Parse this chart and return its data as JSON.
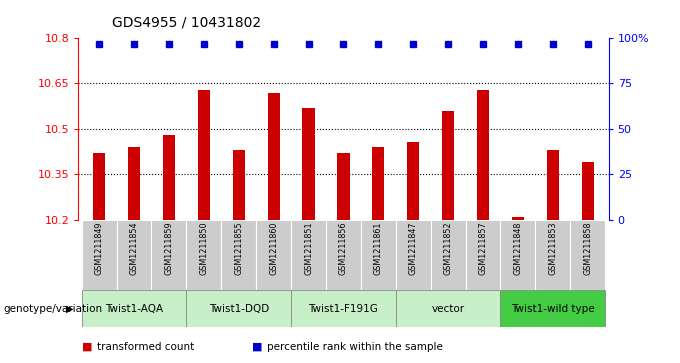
{
  "title": "GDS4955 / 10431802",
  "samples": [
    "GSM1211849",
    "GSM1211854",
    "GSM1211859",
    "GSM1211850",
    "GSM1211855",
    "GSM1211860",
    "GSM1211851",
    "GSM1211856",
    "GSM1211861",
    "GSM1211847",
    "GSM1211852",
    "GSM1211857",
    "GSM1211848",
    "GSM1211853",
    "GSM1211858"
  ],
  "bar_values": [
    10.42,
    10.44,
    10.48,
    10.63,
    10.43,
    10.62,
    10.57,
    10.42,
    10.44,
    10.455,
    10.56,
    10.63,
    10.21,
    10.43,
    10.39
  ],
  "percentile_values": [
    97,
    97,
    97,
    97,
    97,
    97,
    97,
    97,
    97,
    97,
    97,
    97,
    97,
    97,
    97
  ],
  "ymin": 10.2,
  "ymax": 10.8,
  "y_ticks": [
    10.2,
    10.35,
    10.5,
    10.65,
    10.8
  ],
  "right_y_ticks": [
    0,
    25,
    50,
    75,
    100
  ],
  "right_y_tick_labels": [
    "0",
    "25",
    "50",
    "75",
    "100%"
  ],
  "dotted_lines": [
    10.35,
    10.5,
    10.65
  ],
  "bar_color": "#cc0000",
  "dot_color": "#0000cc",
  "groups": [
    {
      "label": "Twist1-AQA",
      "start": 0,
      "end": 3,
      "color": "#ccffcc"
    },
    {
      "label": "Twist1-DQD",
      "start": 3,
      "end": 6,
      "color": "#ccffcc"
    },
    {
      "label": "Twist1-F191G",
      "start": 6,
      "end": 9,
      "color": "#ccffcc"
    },
    {
      "label": "vector",
      "start": 9,
      "end": 12,
      "color": "#ccffcc"
    },
    {
      "label": "Twist1-wild type",
      "start": 12,
      "end": 15,
      "color": "#44cc44"
    }
  ],
  "genotype_label": "genotype/variation",
  "legend_items": [
    {
      "label": "transformed count",
      "color": "#cc0000"
    },
    {
      "label": "percentile rank within the sample",
      "color": "#0000cc"
    }
  ],
  "bg_color": "#ffffff",
  "sample_bg_color": "#cccccc",
  "tick_fontsize": 8,
  "title_fontsize": 10
}
